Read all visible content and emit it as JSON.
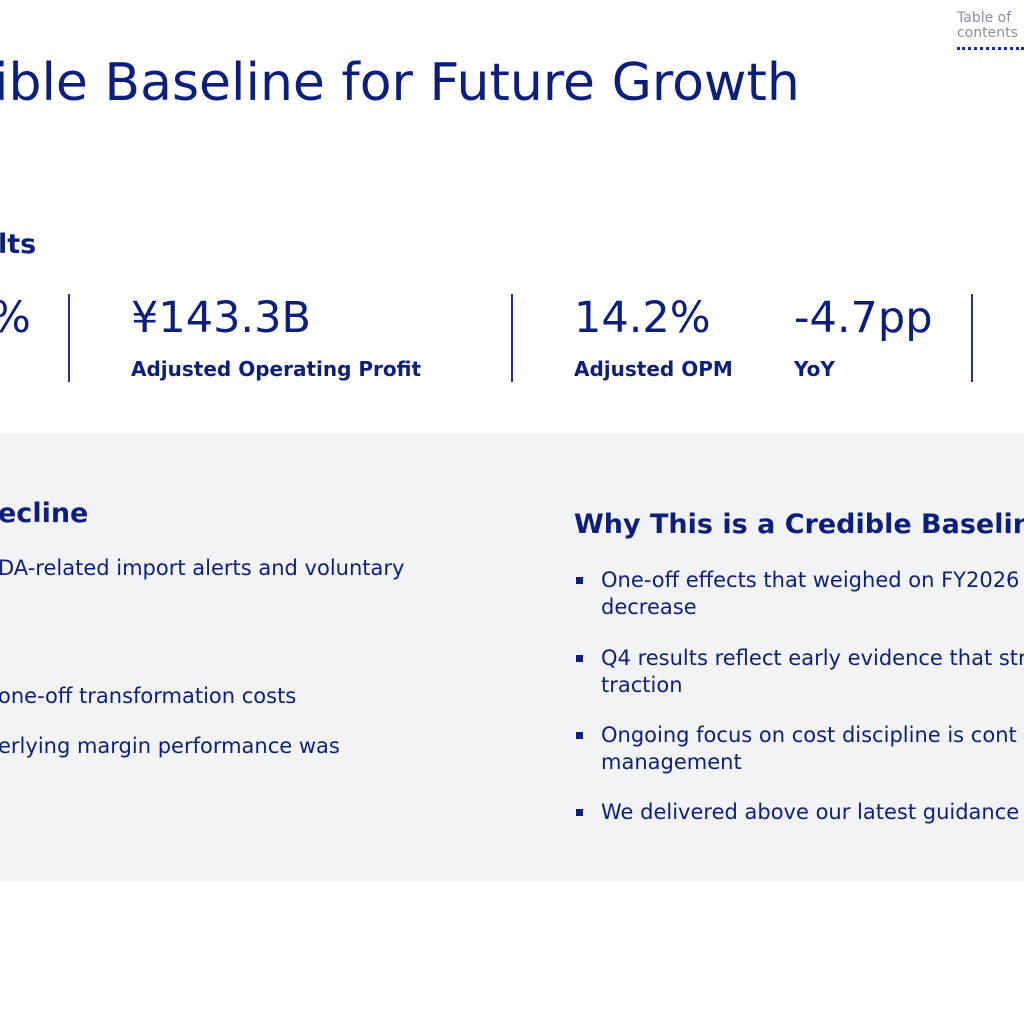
{
  "toc": {
    "line1": "Table of",
    "line2": "contents"
  },
  "header": {
    "title": "ible Baseline for Future Growth"
  },
  "results": {
    "heading": "lts",
    "kpis": [
      {
        "value": "%",
        "label": ""
      },
      {
        "value": "¥143.3B",
        "label": "Adjusted Operating Profit"
      },
      {
        "value": "14.2%",
        "label": "Adjusted OPM"
      },
      {
        "value": "-4.7pp",
        "label": "YoY"
      }
    ]
  },
  "left_column": {
    "heading": "ecline",
    "bullets": [
      "DA-related import alerts and voluntary",
      "one-off transformation costs",
      "erlying margin performance was"
    ]
  },
  "right_column": {
    "heading": "Why This is a Credible Baseline",
    "bullets": [
      {
        "line1": "One-off effects that weighed on FY2026",
        "line2": "decrease"
      },
      {
        "line1": "Q4 results reflect early evidence that str",
        "line2": "traction"
      },
      {
        "line1": "Ongoing focus on cost discipline is cont",
        "line2": "management"
      },
      {
        "line1": "We delivered above our latest guidance",
        "line2": ""
      }
    ]
  }
}
